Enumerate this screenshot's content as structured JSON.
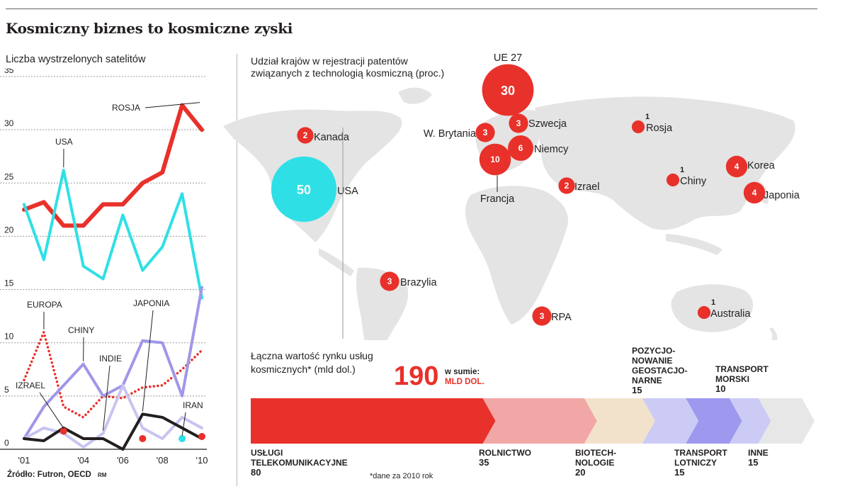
{
  "title": "Kosmiczny biznes to kosmiczne zyski",
  "source": "Źródło: Futron, OECD",
  "author_initials": "RM",
  "footnote": "*dane za 2010 rok",
  "chart_data": [
    {
      "type": "line",
      "title": "Liczba wystrzelonych satelitów",
      "ylim": [
        0,
        35
      ],
      "yticks": [
        0,
        5,
        10,
        15,
        20,
        25,
        30,
        35
      ],
      "grid": true,
      "x": [
        2001,
        2002,
        2003,
        2004,
        2005,
        2006,
        2007,
        2008,
        2009,
        2010
      ],
      "xtick_labels": [
        "'01",
        "'04",
        "'06",
        "'08",
        "'10"
      ],
      "xtick_values": [
        2001,
        2004,
        2006,
        2008,
        2010
      ],
      "series": [
        {
          "name": "ROSJA",
          "color": "#e8312a",
          "style": "thick",
          "values": [
            22.5,
            23.2,
            21,
            21,
            23,
            23,
            25,
            26,
            32.3,
            30
          ]
        },
        {
          "name": "USA",
          "color": "#2ee0e6",
          "style": "solid",
          "values": [
            23,
            17.8,
            26.2,
            17.2,
            16,
            22,
            16.8,
            19,
            24,
            14.2
          ]
        },
        {
          "name": "EUROPA",
          "color": "#e8312a",
          "style": "dotted",
          "values": [
            6.5,
            11,
            4,
            3,
            5,
            4.8,
            5.8,
            6,
            7.5,
            9.3
          ]
        },
        {
          "name": "CHINY",
          "color": "#9f97e8",
          "style": "solid",
          "values": [
            1,
            4,
            6,
            8,
            5,
            6,
            10.2,
            10,
            5,
            15.2
          ]
        },
        {
          "name": "INDIE",
          "color": "#c8c4f0",
          "style": "solid",
          "values": [
            1,
            2,
            1.5,
            0.2,
            1.5,
            6,
            2,
            1,
            3,
            2
          ]
        },
        {
          "name": "JAPONIA",
          "color": "#231f20",
          "style": "solid",
          "values": [
            1,
            0.8,
            2,
            1,
            1,
            0,
            3.3,
            3,
            2,
            1
          ]
        }
      ],
      "points": [
        {
          "name": "IZRAEL",
          "color": "#e8312a",
          "x": 2003,
          "y": 1.7
        },
        {
          "name": "IRAN",
          "color": "#2ee0e6",
          "x": 2009,
          "y": 1
        },
        {
          "name": "",
          "color": "#e8312a",
          "x": 2007,
          "y": 1
        },
        {
          "name": "",
          "color": "#e8312a",
          "x": 2010,
          "y": 1.2
        }
      ]
    },
    {
      "type": "bubble-map",
      "title": "Udział krajów w rejestracji patentów związanych z technologią kosmiczną (proc.)",
      "items": [
        {
          "label": "USA",
          "value": 50,
          "color": "#2ee0e6"
        },
        {
          "label": "UE 27",
          "value": 30,
          "color": "#e8312a"
        },
        {
          "label": "Francja",
          "value": 10,
          "color": "#e8312a"
        },
        {
          "label": "Niemcy",
          "value": 6,
          "color": "#e8312a"
        },
        {
          "label": "W. Brytania",
          "value": 3,
          "color": "#e8312a"
        },
        {
          "label": "Szwecja",
          "value": 3,
          "color": "#e8312a"
        },
        {
          "label": "Kanada",
          "value": 2,
          "color": "#e8312a"
        },
        {
          "label": "Rosja",
          "value": 1,
          "color": "#e8312a"
        },
        {
          "label": "Izrael",
          "value": 2,
          "color": "#e8312a"
        },
        {
          "label": "Chiny",
          "value": 1,
          "color": "#e8312a"
        },
        {
          "label": "Korea",
          "value": 4,
          "color": "#e8312a"
        },
        {
          "label": "Japonia",
          "value": 4,
          "color": "#e8312a"
        },
        {
          "label": "Brazylia",
          "value": 3,
          "color": "#e8312a"
        },
        {
          "label": "RPA",
          "value": 3,
          "color": "#e8312a"
        },
        {
          "label": "Australia",
          "value": 1,
          "color": "#e8312a"
        }
      ]
    },
    {
      "type": "bar",
      "title": "Łączna wartość rynku usług kosmicznych* (mld dol.)",
      "total": "190",
      "total_caption": "w sumie:",
      "total_unit": "MLD DOL.",
      "segments": [
        {
          "label": "USŁUGI TELEKOMUNIKACYJNE",
          "value": 80,
          "color": "#e8312a"
        },
        {
          "label": "ROLNICTWO",
          "value": 35,
          "color": "#f2a7a7"
        },
        {
          "label": "BIOTECH-NOLOGIE",
          "value": 20,
          "color": "#f2e2cc"
        },
        {
          "label": "POZYCJO-NOWANIE GEOSTACJO-NARNE",
          "value": 15,
          "color": "#cccbf5"
        },
        {
          "label": "TRANSPORT LOTNICZY",
          "value": 15,
          "color": "#9e98ee"
        },
        {
          "label": "TRANSPORT MORSKI",
          "value": 10,
          "color": "#cccbf5"
        },
        {
          "label": "INNE",
          "value": 15,
          "color": "#e7e7e7"
        }
      ]
    }
  ]
}
